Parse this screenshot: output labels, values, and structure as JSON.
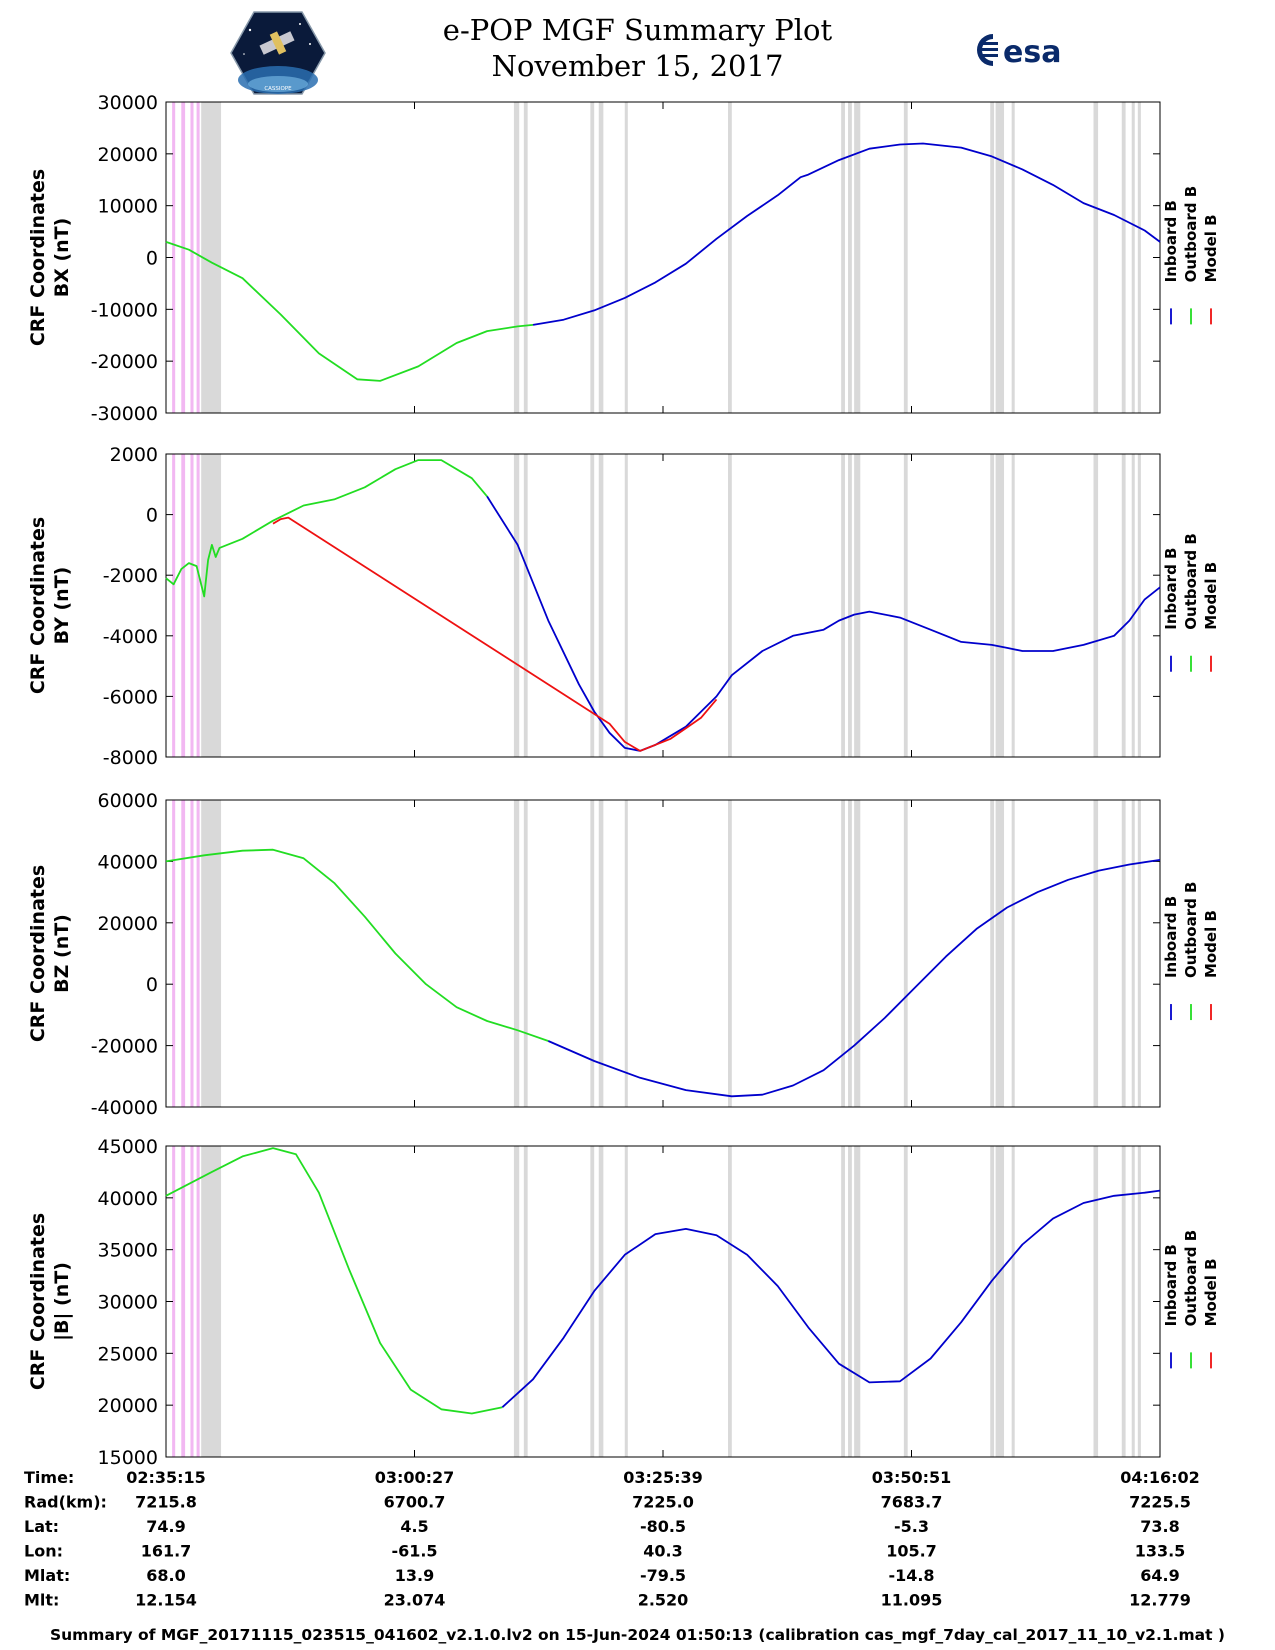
{
  "header": {
    "title": "e-POP MGF Summary Plot",
    "date": "November 15, 2017",
    "left_logo": "cassiope-satellite-logo",
    "left_logo_text": "CASSIOPE",
    "right_logo": "esa-logo",
    "right_logo_text": "esa"
  },
  "colors": {
    "inboard": "#0000cc",
    "outboard": "#22dd22",
    "model": "#ee1111",
    "gray_band": "#d9d9d9",
    "pink_band": "#f2b8f2"
  },
  "legend": {
    "labels": [
      "Inboard B",
      "Outboard B",
      "Model B"
    ]
  },
  "chart_data": [
    {
      "type": "line",
      "title": "",
      "ylabel_line1": "CRF Coordinates",
      "ylabel_line2": "BX (nT)",
      "ylim": [
        -30000,
        30000
      ],
      "yticks": [
        -30000,
        -20000,
        -10000,
        0,
        10000,
        20000,
        30000
      ],
      "ytick_labels": [
        "-30000",
        "-20000",
        "-10000",
        "0",
        "10000",
        "20000",
        "30000"
      ],
      "series": [
        {
          "name": "Outboard B",
          "x": [
            0,
            3,
            6,
            10,
            15,
            20,
            25,
            28,
            33,
            38,
            42,
            46,
            48
          ],
          "y": [
            3000,
            1500,
            -1000,
            -4000,
            -11000,
            -18500,
            -23500,
            -23800,
            -21000,
            -16500,
            -14200,
            -13300,
            -13000
          ]
        },
        {
          "name": "Inboard B",
          "x": [
            48,
            52,
            56,
            60,
            64,
            68,
            72,
            76,
            80,
            83,
            84,
            88,
            92,
            96,
            99,
            104,
            108,
            112,
            116,
            120,
            124,
            128,
            130
          ],
          "y": [
            -13000,
            -12000,
            -10200,
            -7800,
            -4800,
            -1200,
            3600,
            8000,
            12000,
            15500,
            16000,
            18800,
            21000,
            21800,
            22000,
            21200,
            19500,
            17000,
            14000,
            10500,
            8200,
            5200,
            3000
          ]
        }
      ]
    },
    {
      "type": "line",
      "title": "",
      "ylabel_line1": "CRF Coordinates",
      "ylabel_line2": "BY (nT)",
      "ylim": [
        -8000,
        2000
      ],
      "yticks": [
        -8000,
        -6000,
        -4000,
        -2000,
        0,
        2000
      ],
      "ytick_labels": [
        "-8000",
        "-6000",
        "-4000",
        "-2000",
        "0",
        "2000"
      ],
      "series": [
        {
          "name": "Outboard B",
          "x": [
            0,
            1,
            2,
            3,
            4,
            5,
            5.5,
            6,
            6.5,
            7,
            10,
            14,
            18,
            22,
            26,
            30,
            33,
            36,
            40,
            42
          ],
          "y": [
            -2100,
            -2300,
            -1800,
            -1600,
            -1700,
            -2700,
            -1500,
            -1000,
            -1400,
            -1100,
            -800,
            -200,
            300,
            500,
            900,
            1500,
            1800,
            1800,
            1200,
            600
          ]
        },
        {
          "name": "Inboard B",
          "x": [
            42,
            46,
            50,
            54,
            56,
            58,
            60,
            62,
            64,
            66,
            68,
            70,
            72,
            74,
            78,
            82,
            86,
            88,
            90,
            92,
            96,
            100,
            104,
            108,
            110,
            112,
            116,
            120,
            124,
            126,
            128,
            130
          ],
          "y": [
            600,
            -1000,
            -3500,
            -5600,
            -6500,
            -7200,
            -7700,
            -7800,
            -7600,
            -7300,
            -7000,
            -6500,
            -6000,
            -5300,
            -4500,
            -4000,
            -3800,
            -3500,
            -3300,
            -3200,
            -3400,
            -3800,
            -4200,
            -4300,
            -4400,
            -4500,
            -4500,
            -4300,
            -4000,
            -3500,
            -2800,
            -2400
          ]
        },
        {
          "name": "Model B",
          "x": [
            14,
            15,
            16,
            58,
            60,
            62,
            66,
            68,
            70,
            72
          ],
          "y": [
            -300,
            -150,
            -100,
            -6900,
            -7500,
            -7800,
            -7400,
            -7050,
            -6700,
            -6100
          ]
        }
      ]
    },
    {
      "type": "line",
      "title": "",
      "ylabel_line1": "CRF Coordinates",
      "ylabel_line2": "BZ (nT)",
      "ylim": [
        -40000,
        60000
      ],
      "yticks": [
        -40000,
        -20000,
        0,
        20000,
        40000,
        60000
      ],
      "ytick_labels": [
        "-40000",
        "-20000",
        "0",
        "20000",
        "40000",
        "60000"
      ],
      "series": [
        {
          "name": "Outboard B",
          "x": [
            0,
            5,
            10,
            14,
            18,
            22,
            26,
            30,
            34,
            38,
            42,
            46,
            50
          ],
          "y": [
            40000,
            42000,
            43500,
            43800,
            41000,
            33000,
            22000,
            10000,
            0,
            -7500,
            -12000,
            -15000,
            -18500
          ]
        },
        {
          "name": "Inboard B",
          "x": [
            50,
            56,
            62,
            68,
            74,
            78,
            82,
            86,
            90,
            94,
            98,
            102,
            106,
            110,
            114,
            118,
            122,
            126,
            130
          ],
          "y": [
            -18500,
            -25000,
            -30500,
            -34500,
            -36500,
            -36000,
            -33000,
            -28000,
            -20000,
            -11000,
            -1000,
            9000,
            18000,
            25000,
            30000,
            34000,
            37000,
            39000,
            40500
          ]
        }
      ]
    },
    {
      "type": "line",
      "title": "",
      "ylabel_line1": "CRF Coordinates",
      "ylabel_line2": "|B| (nT)",
      "ylim": [
        15000,
        45000
      ],
      "yticks": [
        15000,
        20000,
        25000,
        30000,
        35000,
        40000,
        45000
      ],
      "ytick_labels": [
        "15000",
        "20000",
        "25000",
        "30000",
        "35000",
        "40000",
        "45000"
      ],
      "series": [
        {
          "name": "Outboard B",
          "x": [
            0,
            6,
            10,
            14,
            17,
            20,
            24,
            28,
            32,
            36,
            40,
            44
          ],
          "y": [
            40200,
            42500,
            44000,
            44800,
            44200,
            40500,
            33000,
            26000,
            21500,
            19600,
            19200,
            19800
          ]
        },
        {
          "name": "Inboard B",
          "x": [
            44,
            48,
            52,
            56,
            60,
            64,
            68,
            72,
            76,
            80,
            84,
            88,
            92,
            96,
            100,
            104,
            108,
            112,
            116,
            120,
            124,
            128,
            130
          ],
          "y": [
            19800,
            22500,
            26500,
            31000,
            34500,
            36500,
            37000,
            36400,
            34500,
            31500,
            27500,
            24000,
            22200,
            22300,
            24500,
            28000,
            32000,
            35500,
            38000,
            39500,
            40200,
            40500,
            40700
          ]
        }
      ]
    }
  ],
  "time_axis": {
    "xlim": [
      0,
      130
    ],
    "tick_positions": [
      0,
      32.5,
      65,
      97.5,
      130
    ]
  },
  "ephemeris": {
    "row_labels": [
      "Time:",
      "Rad(km):",
      "Lat:",
      "Lon:",
      "Mlat:",
      "Mlt:"
    ],
    "columns": [
      [
        "02:35:15",
        "7215.8",
        "74.9",
        "161.7",
        "68.0",
        "12.154"
      ],
      [
        "03:00:27",
        "6700.7",
        "4.5",
        "-61.5",
        "13.9",
        "23.074"
      ],
      [
        "03:25:39",
        "7225.0",
        "-80.5",
        "40.3",
        "-79.5",
        "2.520"
      ],
      [
        "03:50:51",
        "7683.7",
        "-5.3",
        "105.7",
        "-14.8",
        "11.095"
      ],
      [
        "04:16:02",
        "7225.5",
        "73.8",
        "133.5",
        "64.9",
        "12.779"
      ]
    ]
  },
  "bands": {
    "pink": [
      [
        0.8,
        1.2
      ],
      [
        2.0,
        2.5
      ],
      [
        3.2,
        3.6
      ],
      [
        4.0,
        4.4
      ]
    ],
    "gray": [
      [
        4.6,
        7.2
      ],
      [
        45.5,
        46.2
      ],
      [
        46.8,
        47.3
      ],
      [
        55.5,
        56.0
      ],
      [
        56.6,
        57.2
      ],
      [
        60.0,
        60.4
      ],
      [
        73.5,
        74.0
      ],
      [
        88.3,
        88.8
      ],
      [
        89.2,
        89.7
      ],
      [
        90.0,
        90.8
      ],
      [
        96.5,
        97.0
      ],
      [
        107.8,
        108.3
      ],
      [
        108.5,
        109.6
      ],
      [
        110.6,
        111.0
      ],
      [
        121.3,
        121.9
      ],
      [
        125.0,
        125.5
      ],
      [
        126.3,
        126.7
      ],
      [
        127.1,
        127.5
      ]
    ]
  },
  "footer": {
    "text": "Summary of MGF_20171115_023515_041602_v2.1.0.lv2 on 15-Jun-2024 01:50:13 (calibration cas_mgf_7day_cal_2017_11_10_v2.1.mat )"
  }
}
